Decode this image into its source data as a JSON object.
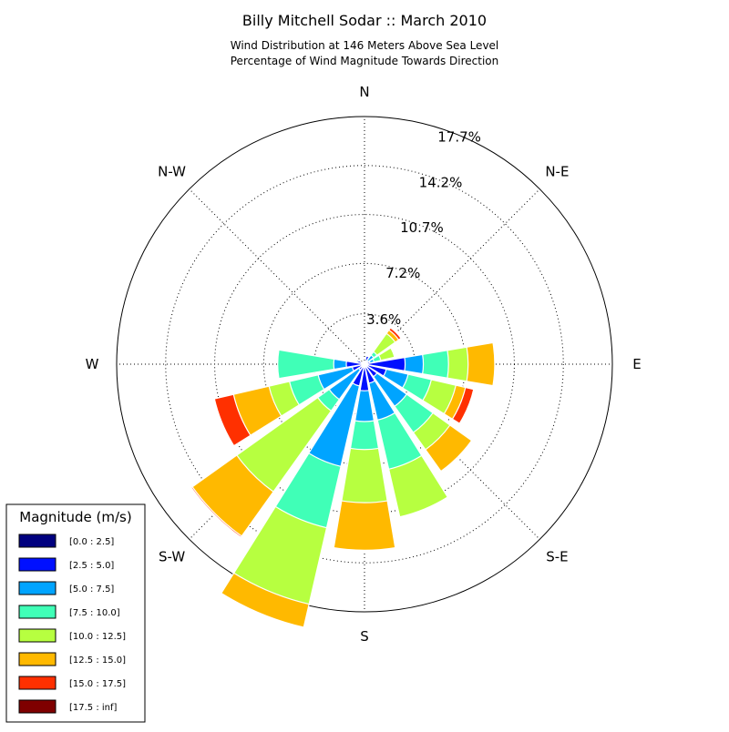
{
  "chart_data": {
    "type": "windrose",
    "title": "Billy Mitchell Sodar :: March 2010",
    "subtitle_lines": [
      "Wind Distribution at 146 Meters Above Sea Level",
      "Percentage of Wind Magnitude Towards Direction"
    ],
    "radial_unit": "%",
    "r_max": 17.7,
    "ring_values": [
      3.6,
      7.2,
      10.7,
      14.2,
      17.7
    ],
    "ring_labels": [
      "3.6%",
      "7.2%",
      "10.7%",
      "14.2%",
      "17.7%"
    ],
    "direction_labels": [
      {
        "angle": 0,
        "label": "N"
      },
      {
        "angle": 45,
        "label": "N-E"
      },
      {
        "angle": 90,
        "label": "E"
      },
      {
        "angle": 135,
        "label": "S-E"
      },
      {
        "angle": 180,
        "label": "S"
      },
      {
        "angle": 225,
        "label": "S-W"
      },
      {
        "angle": 270,
        "label": "W"
      },
      {
        "angle": 315,
        "label": "N-W"
      }
    ],
    "sector_width_deg": 19,
    "legend": {
      "title": "Magnitude (m/s)",
      "placement": "lower-left",
      "bins": [
        {
          "label": "[0.0 : 2.5]",
          "color": "#00007f"
        },
        {
          "label": "[2.5 : 5.0]",
          "color": "#0010ff"
        },
        {
          "label": "[5.0 : 7.5]",
          "color": "#00a4ff"
        },
        {
          "label": "[7.5 : 10.0]",
          "color": "#40ffb7"
        },
        {
          "label": "[10.0 : 12.5]",
          "color": "#b7ff40"
        },
        {
          "label": "[12.5 : 15.0]",
          "color": "#ffb900"
        },
        {
          "label": "[15.0 : 17.5]",
          "color": "#ff3000"
        },
        {
          "label": "[17.5 : inf]",
          "color": "#7f0000"
        }
      ]
    },
    "directions_deg": [
      0,
      22.5,
      45,
      67.5,
      90,
      112.5,
      135,
      157.5,
      180,
      202.5,
      225,
      247.5,
      270,
      292.5,
      315,
      337.5
    ],
    "cumulative_percent": [
      [
        0.1,
        0.1,
        0.1,
        0.1,
        0.1,
        0.1,
        0.1,
        0.1
      ],
      [
        0.1,
        0.6,
        0.6,
        0.6,
        0.6,
        0.6,
        0.6,
        0.6
      ],
      [
        0.1,
        0.3,
        0.8,
        1.1,
        2.7,
        3.0,
        3.2,
        3.2
      ],
      [
        0.1,
        0.4,
        0.7,
        1.2,
        2.2,
        2.2,
        2.2,
        2.2
      ],
      [
        0.1,
        2.9,
        4.2,
        6.0,
        7.4,
        9.3,
        9.3,
        9.3
      ],
      [
        0.1,
        1.6,
        3.2,
        4.9,
        6.7,
        7.4,
        8.0,
        8.0
      ],
      [
        0.1,
        1.1,
        3.7,
        6.0,
        7.5,
        9.4,
        9.4,
        9.4
      ],
      [
        0.1,
        1.4,
        4.1,
        7.7,
        11.2,
        11.2,
        11.2,
        11.2
      ],
      [
        0.1,
        1.9,
        4.1,
        6.1,
        9.9,
        13.3,
        13.3,
        13.3
      ],
      [
        0.1,
        1.6,
        7.5,
        12.0,
        17.6,
        19.3,
        19.3,
        19.3
      ],
      [
        0.1,
        0.5,
        3.1,
        4.1,
        11.2,
        15.1,
        15.2,
        15.2
      ],
      [
        0.1,
        0.9,
        3.4,
        5.5,
        7.0,
        9.6,
        11.0,
        11.0
      ],
      [
        0.1,
        1.3,
        2.2,
        6.2,
        6.2,
        6.2,
        6.2,
        6.2
      ],
      [
        0.1,
        0.5,
        0.6,
        0.6,
        0.6,
        0.6,
        0.6,
        0.6
      ],
      [
        0.1,
        0.1,
        0.1,
        0.1,
        0.1,
        0.1,
        0.1,
        0.1
      ],
      [
        0.1,
        0.1,
        0.1,
        0.1,
        0.1,
        0.1,
        0.1,
        0.1
      ]
    ]
  }
}
